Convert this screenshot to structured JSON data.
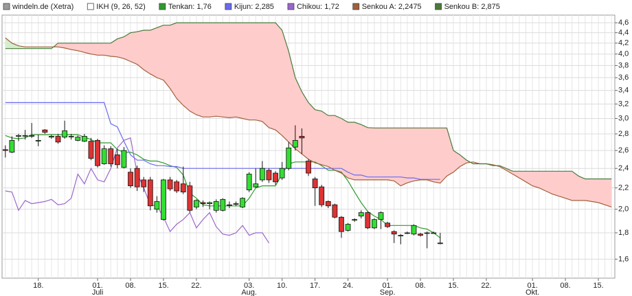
{
  "chart_data": {
    "type": "candlestick",
    "yscale": "log",
    "ylim": [
      1.47,
      4.76
    ],
    "yticks": [
      {
        "value": 1.6,
        "label": "1,6"
      },
      {
        "value": 1.8,
        "label": "1,8"
      },
      {
        "value": 2.0,
        "label": "2,0"
      },
      {
        "value": 2.2,
        "label": "2,2"
      },
      {
        "value": 2.4,
        "label": "2,4"
      },
      {
        "value": 2.6,
        "label": "2,6"
      },
      {
        "value": 2.8,
        "label": "2,8"
      },
      {
        "value": 3.0,
        "label": "3,0"
      },
      {
        "value": 3.2,
        "label": "3,2"
      },
      {
        "value": 3.4,
        "label": "3,4"
      },
      {
        "value": 3.6,
        "label": "3,6"
      },
      {
        "value": 3.8,
        "label": "3,8"
      },
      {
        "value": 4.0,
        "label": "4,0"
      },
      {
        "value": 4.2,
        "label": "4,2"
      },
      {
        "value": 4.4,
        "label": "4,4"
      },
      {
        "value": 4.6,
        "label": "4,6"
      }
    ],
    "grid": true,
    "categories": [
      null,
      null,
      null,
      null,
      null,
      "18.",
      null,
      null,
      null,
      null,
      null,
      null,
      null,
      null,
      "01.",
      null,
      null,
      null,
      null,
      "08.",
      null,
      null,
      null,
      null,
      "15.",
      null,
      null,
      null,
      null,
      "22.",
      null,
      null,
      null,
      null,
      null,
      null,
      null,
      "03.",
      null,
      null,
      null,
      null,
      "10.",
      null,
      null,
      null,
      null,
      "17.",
      null,
      null,
      null,
      null,
      "24.",
      null,
      null,
      null,
      null,
      null,
      "01.",
      null,
      null,
      null,
      null,
      "08.",
      null,
      null,
      null,
      null,
      "15.",
      null,
      null,
      null,
      null,
      "22.",
      null,
      null,
      null,
      null,
      null,
      null,
      "01.",
      null,
      null,
      null,
      null,
      "08.",
      null,
      null,
      null,
      null,
      "15.",
      null,
      null
    ],
    "month_labels": [
      null,
      null,
      null,
      null,
      null,
      null,
      null,
      null,
      null,
      null,
      null,
      null,
      null,
      null,
      "Juli",
      null,
      null,
      null,
      null,
      null,
      null,
      null,
      null,
      null,
      null,
      null,
      null,
      null,
      null,
      null,
      null,
      null,
      null,
      null,
      null,
      null,
      null,
      "Aug.",
      null,
      null,
      null,
      null,
      null,
      null,
      null,
      null,
      null,
      null,
      null,
      null,
      null,
      null,
      null,
      null,
      null,
      null,
      null,
      null,
      "Sep.",
      null,
      null,
      null,
      null,
      null,
      null,
      null,
      null,
      null,
      null,
      null,
      null,
      null,
      null,
      null,
      null,
      null,
      null,
      null,
      null,
      null,
      "Okt.",
      null,
      null,
      null,
      null,
      null,
      null,
      null,
      null,
      null,
      null,
      null,
      null
    ],
    "candles": {
      "name": "windeln.de (Xetra)",
      "color": "#9a9a9a",
      "up_color": "#33dd33",
      "down_color": "#dd3333",
      "open": [
        2.61,
        2.58,
        2.77,
        2.78,
        2.77,
        2.72,
        2.85,
        2.76,
        2.77,
        2.76,
        2.77,
        2.72,
        2.71,
        2.71,
        2.72,
        2.45,
        2.62,
        2.55,
        2.41,
        2.36,
        2.4,
        2.28,
        2.28,
        2.0,
        1.91,
        2.28,
        2.26,
        2.24,
        2.22,
        2.02,
        2.06,
        2.05,
        1.99,
        1.99,
        2.04,
        2.05,
        2.02,
        2.18,
        2.21,
        2.28,
        2.38,
        2.35,
        2.3,
        2.4,
        2.64,
        2.77,
        2.48,
        2.29,
        2.21,
        2.07,
        2.04,
        1.93,
        1.82,
        1.91,
        1.94,
        1.97,
        1.84,
        1.91,
        1.88,
        1.81,
        1.78,
        1.8,
        1.79,
        1.79,
        1.8,
        1.8,
        1.72,
        null,
        null,
        null,
        null,
        null,
        null,
        null,
        null,
        null,
        null,
        null,
        null,
        null,
        null,
        null,
        null,
        null,
        null,
        null,
        null,
        null,
        null,
        null,
        null,
        null,
        null
      ],
      "high": [
        2.66,
        2.77,
        2.8,
        2.85,
        2.94,
        2.79,
        2.86,
        2.79,
        2.8,
        2.97,
        2.8,
        2.78,
        2.8,
        2.75,
        2.74,
        2.66,
        2.65,
        2.62,
        2.64,
        2.4,
        2.43,
        2.31,
        2.31,
        2.12,
        2.29,
        2.31,
        2.28,
        2.42,
        2.26,
        2.09,
        2.08,
        2.07,
        2.09,
        2.1,
        2.07,
        2.07,
        2.11,
        2.36,
        2.4,
        2.48,
        2.4,
        2.37,
        2.47,
        2.7,
        2.91,
        2.87,
        2.5,
        2.31,
        2.23,
        2.08,
        2.05,
        1.94,
        1.88,
        1.92,
        1.99,
        1.98,
        1.92,
        1.98,
        1.89,
        1.82,
        1.79,
        1.81,
        1.87,
        1.8,
        1.81,
        1.81,
        1.8,
        null,
        null,
        null,
        null,
        null,
        null,
        null,
        null,
        null,
        null,
        null,
        null,
        null,
        null,
        null,
        null,
        null,
        null,
        null,
        null,
        null,
        null,
        null,
        null,
        null,
        null
      ],
      "low": [
        2.52,
        2.57,
        2.71,
        2.73,
        2.75,
        2.65,
        2.8,
        2.74,
        2.68,
        2.74,
        2.73,
        2.71,
        2.7,
        2.49,
        2.41,
        2.44,
        2.42,
        2.4,
        2.4,
        2.2,
        2.17,
        2.16,
        1.99,
        1.97,
        1.9,
        2.17,
        2.15,
        2.14,
        1.97,
        2.0,
        2.02,
        2.0,
        1.97,
        1.98,
        2.01,
        2.03,
        2.01,
        2.16,
        2.2,
        2.26,
        2.25,
        2.23,
        2.28,
        2.38,
        2.6,
        2.56,
        2.32,
        2.03,
        2.02,
        2.01,
        1.92,
        1.76,
        1.81,
        1.89,
        1.92,
        1.83,
        1.83,
        1.83,
        1.84,
        1.72,
        1.71,
        1.79,
        1.78,
        1.77,
        1.68,
        1.8,
        1.71,
        null,
        null,
        null,
        null,
        null,
        null,
        null,
        null,
        null,
        null,
        null,
        null,
        null,
        null,
        null,
        null,
        null,
        null,
        null,
        null,
        null,
        null,
        null,
        null,
        null,
        null
      ],
      "close": [
        2.6,
        2.72,
        2.78,
        2.78,
        2.78,
        2.72,
        2.82,
        2.77,
        2.7,
        2.84,
        2.77,
        2.76,
        2.77,
        2.51,
        2.43,
        2.62,
        2.45,
        2.44,
        2.6,
        2.22,
        2.21,
        2.21,
        2.03,
        2.07,
        2.28,
        2.19,
        2.17,
        2.16,
        1.99,
        2.08,
        2.05,
        2.06,
        2.07,
        2.09,
        2.04,
        2.05,
        2.1,
        2.34,
        2.24,
        2.4,
        2.28,
        2.26,
        2.4,
        2.63,
        2.72,
        2.75,
        2.35,
        2.2,
        2.04,
        2.03,
        1.93,
        1.81,
        1.87,
        1.91,
        1.97,
        1.84,
        1.91,
        1.97,
        1.85,
        1.79,
        1.78,
        1.8,
        1.86,
        1.78,
        1.8,
        1.8,
        1.72,
        null,
        null,
        null,
        null,
        null,
        null,
        null,
        null,
        null,
        null,
        null,
        null,
        null,
        null,
        null,
        null,
        null,
        null,
        null,
        null,
        null,
        null,
        null,
        null,
        null,
        null
      ]
    },
    "indicator": {
      "name": "IKH (9, 26, 52)",
      "color": "#ffffff"
    },
    "cloud": {
      "up_color": "#d3efcf",
      "down_color": "#ffcccc"
    },
    "series": [
      {
        "name": "Tenkan: 1,76",
        "color": "#2e9a2e",
        "values": [
          2.78,
          2.75,
          2.74,
          2.75,
          2.79,
          2.79,
          2.79,
          2.79,
          2.79,
          2.79,
          2.79,
          2.79,
          2.76,
          2.73,
          2.69,
          2.69,
          2.69,
          2.61,
          2.58,
          2.58,
          2.55,
          2.5,
          2.48,
          2.48,
          2.46,
          2.43,
          2.41,
          2.33,
          2.15,
          2.1,
          2.04,
          2.03,
          2.03,
          2.03,
          2.03,
          2.03,
          2.03,
          2.1,
          2.2,
          2.22,
          2.22,
          2.22,
          2.34,
          2.45,
          2.47,
          2.47,
          2.47,
          2.47,
          2.43,
          2.38,
          2.38,
          2.36,
          2.27,
          2.16,
          2.06,
          1.98,
          1.94,
          1.91,
          1.86,
          1.86,
          1.86,
          1.86,
          1.86,
          1.84,
          1.83,
          1.8,
          1.76,
          null,
          null,
          null,
          null,
          null,
          null,
          null,
          null,
          null,
          null,
          null,
          null,
          null,
          null,
          null,
          null,
          null,
          null,
          null,
          null,
          null,
          null,
          null,
          null,
          null,
          null
        ]
      },
      {
        "name": "Kijun: 2,285",
        "color": "#6a6af0",
        "values": [
          3.22,
          3.22,
          3.22,
          3.22,
          3.22,
          3.22,
          3.22,
          3.22,
          3.22,
          3.22,
          3.22,
          3.22,
          3.22,
          3.22,
          3.22,
          3.22,
          2.93,
          2.89,
          2.71,
          2.55,
          2.49,
          2.49,
          2.45,
          2.43,
          2.43,
          2.42,
          2.42,
          2.4,
          2.4,
          2.4,
          2.4,
          2.4,
          2.4,
          2.4,
          2.4,
          2.4,
          2.4,
          2.4,
          2.4,
          2.4,
          2.4,
          2.4,
          2.4,
          2.4,
          2.4,
          2.4,
          2.4,
          2.4,
          2.4,
          2.4,
          2.4,
          2.4,
          2.36,
          2.33,
          2.33,
          2.31,
          2.31,
          2.31,
          2.31,
          2.31,
          2.31,
          2.3,
          2.3,
          2.285,
          2.285,
          2.285,
          2.285,
          null,
          null,
          null,
          null,
          null,
          null,
          null,
          null,
          null,
          null,
          null,
          null,
          null,
          null,
          null,
          null,
          null,
          null,
          null,
          null,
          null,
          null,
          null,
          null,
          null,
          null
        ]
      },
      {
        "name": "Chikou: 1,72",
        "color": "#9a66cc",
        "values": [
          2.17,
          2.16,
          1.99,
          2.08,
          2.05,
          2.06,
          2.07,
          2.09,
          2.04,
          2.05,
          2.1,
          2.34,
          2.24,
          2.4,
          2.28,
          2.26,
          2.4,
          2.63,
          2.72,
          2.75,
          2.35,
          2.2,
          2.04,
          2.03,
          1.93,
          1.81,
          1.87,
          1.91,
          1.97,
          1.84,
          1.91,
          1.97,
          1.85,
          1.79,
          1.78,
          1.8,
          1.86,
          1.78,
          1.8,
          1.8,
          1.72,
          null,
          null,
          null,
          null,
          null,
          null,
          null,
          null,
          null,
          null,
          null,
          null,
          null,
          null,
          null,
          null,
          null,
          null,
          null,
          null,
          null,
          null,
          null,
          null,
          null,
          null,
          null,
          null,
          null,
          null,
          null,
          null,
          null,
          null,
          null,
          null,
          null,
          null,
          null,
          null,
          null,
          null,
          null,
          null,
          null,
          null,
          null,
          null,
          null,
          null,
          null,
          null
        ]
      },
      {
        "name": "Senkou A: 2,2475",
        "color": "#a0603a",
        "kind": "senkou_a",
        "values": [
          4.3,
          4.2,
          4.15,
          4.13,
          4.13,
          4.13,
          4.13,
          4.13,
          4.13,
          4.11,
          4.08,
          4.06,
          4.03,
          4.0,
          3.98,
          3.98,
          3.96,
          3.95,
          3.92,
          3.87,
          3.82,
          3.73,
          3.66,
          3.6,
          3.56,
          3.43,
          3.28,
          3.18,
          3.1,
          3.05,
          3.02,
          3.02,
          3.03,
          3.02,
          3.01,
          3.02,
          3.0,
          2.98,
          2.98,
          2.96,
          2.88,
          2.85,
          2.78,
          2.7,
          2.62,
          2.56,
          2.5,
          2.46,
          2.44,
          2.42,
          2.38,
          2.35,
          2.3,
          2.28,
          2.28,
          2.28,
          2.28,
          2.28,
          2.28,
          2.27,
          2.22,
          2.25,
          2.27,
          2.28,
          2.28,
          2.26,
          2.2475,
          2.32,
          2.36,
          2.42,
          2.46,
          2.47,
          2.45,
          2.45,
          2.44,
          2.42,
          2.38,
          2.34,
          2.3,
          2.26,
          2.22,
          2.2,
          2.17,
          2.14,
          2.12,
          2.1,
          2.08,
          2.08,
          2.08,
          2.07,
          2.06,
          2.04,
          2.02
        ]
      },
      {
        "name": "Senkou B: 2,875",
        "color": "#4a7a3a",
        "kind": "senkou_b",
        "values": [
          4.1,
          4.1,
          4.1,
          4.1,
          4.1,
          4.1,
          4.1,
          4.1,
          4.2,
          4.2,
          4.2,
          4.2,
          4.2,
          4.2,
          4.2,
          4.2,
          4.2,
          4.28,
          4.32,
          4.4,
          4.42,
          4.45,
          4.45,
          4.5,
          4.55,
          4.55,
          4.6,
          4.6,
          4.6,
          4.6,
          4.6,
          4.6,
          4.6,
          4.6,
          4.6,
          4.6,
          4.6,
          4.6,
          4.6,
          4.6,
          4.6,
          4.6,
          4.45,
          4.05,
          3.6,
          3.38,
          3.22,
          3.12,
          3.1,
          3.04,
          3.04,
          3.0,
          2.95,
          2.95,
          2.92,
          2.88,
          2.875,
          2.875,
          2.875,
          2.875,
          2.875,
          2.875,
          2.875,
          2.875,
          2.875,
          2.875,
          2.875,
          2.875,
          2.6,
          2.55,
          2.49,
          2.45,
          2.45,
          2.45,
          2.43,
          2.43,
          2.4,
          2.37,
          2.37,
          2.37,
          2.37,
          2.37,
          2.37,
          2.37,
          2.37,
          2.37,
          2.37,
          2.32,
          2.29,
          2.29,
          2.29,
          2.29,
          2.29
        ]
      }
    ]
  }
}
